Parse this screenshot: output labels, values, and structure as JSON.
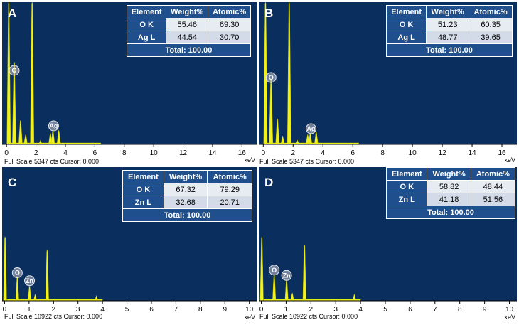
{
  "chart_data": [
    {
      "type": "bar",
      "panel_letter": "A",
      "xlim": [
        -0.3,
        17
      ],
      "xticks": [
        0,
        2,
        4,
        6,
        8,
        10,
        12,
        14,
        16
      ],
      "xunit": "keV",
      "status": "Full Scale 5347 cts Cursor: 0.000",
      "full_scale": 5347,
      "peaks": [
        {
          "x": 0.15,
          "h": 1.0
        },
        {
          "x": 0.52,
          "h": 0.58
        },
        {
          "x": 0.95,
          "h": 0.17
        },
        {
          "x": 1.3,
          "h": 0.07
        },
        {
          "x": 1.74,
          "h": 1.0
        },
        {
          "x": 2.3,
          "h": 0.03
        },
        {
          "x": 2.98,
          "h": 0.08
        },
        {
          "x": 3.15,
          "h": 0.1
        },
        {
          "x": 3.55,
          "h": 0.1
        }
      ],
      "markers": [
        {
          "label": "O",
          "x": 0.52,
          "hpos": 0.52
        },
        {
          "label": "Ag",
          "x": 3.2,
          "hpos": 0.13
        }
      ],
      "table": {
        "headers": [
          "Element",
          "Weight%",
          "Atomic%"
        ],
        "rows": [
          [
            "O K",
            "55.46",
            "69.30"
          ],
          [
            "Ag L",
            "44.54",
            "30.70"
          ]
        ],
        "total": "Total: 100.00"
      }
    },
    {
      "type": "bar",
      "panel_letter": "B",
      "xlim": [
        -0.3,
        17
      ],
      "xticks": [
        0,
        2,
        4,
        6,
        8,
        10,
        12,
        14,
        16
      ],
      "xunit": "keV",
      "status": "Full Scale 5347 cts Cursor: 0.000",
      "full_scale": 5347,
      "peaks": [
        {
          "x": 0.15,
          "h": 1.0
        },
        {
          "x": 0.52,
          "h": 0.46
        },
        {
          "x": 0.95,
          "h": 0.18
        },
        {
          "x": 1.3,
          "h": 0.06
        },
        {
          "x": 1.74,
          "h": 1.0
        },
        {
          "x": 2.3,
          "h": 0.03
        },
        {
          "x": 2.98,
          "h": 0.07
        },
        {
          "x": 3.15,
          "h": 0.08
        },
        {
          "x": 3.55,
          "h": 0.09
        }
      ],
      "markers": [
        {
          "label": "O",
          "x": 0.52,
          "hpos": 0.47
        },
        {
          "label": "Ag",
          "x": 3.2,
          "hpos": 0.11
        }
      ],
      "table": {
        "headers": [
          "Element",
          "Weight%",
          "Atomic%"
        ],
        "rows": [
          [
            "O K",
            "51.23",
            "60.35"
          ],
          [
            "Ag L",
            "48.77",
            "39.65"
          ]
        ],
        "total": "Total: 100.00"
      }
    },
    {
      "type": "bar",
      "panel_letter": "C",
      "xlim": [
        -0.1,
        10.3
      ],
      "xticks": [
        0,
        1,
        2,
        3,
        4,
        5,
        6,
        7,
        8,
        9,
        10
      ],
      "xunit": "keV",
      "status": "Full Scale 10922 cts Cursor: 0.000",
      "full_scale": 10922,
      "peaks": [
        {
          "x": 0.02,
          "h": 0.48
        },
        {
          "x": 0.52,
          "h": 0.18
        },
        {
          "x": 1.02,
          "h": 0.11
        },
        {
          "x": 1.25,
          "h": 0.05
        },
        {
          "x": 1.74,
          "h": 0.38
        },
        {
          "x": 3.75,
          "h": 0.04
        }
      ],
      "markers": [
        {
          "label": "O",
          "x": 0.52,
          "hpos": 0.21
        },
        {
          "label": "Zn",
          "x": 1.02,
          "hpos": 0.15
        }
      ],
      "table": {
        "headers": [
          "Element",
          "Weight%",
          "Atomic%"
        ],
        "rows": [
          [
            "O K",
            "67.32",
            "79.29"
          ],
          [
            "Zn L",
            "32.68",
            "20.71"
          ]
        ],
        "total": "Total: 100.00"
      }
    },
    {
      "type": "bar",
      "panel_letter": "D",
      "xlim": [
        -0.1,
        10.3
      ],
      "xticks": [
        0,
        1,
        2,
        3,
        4,
        5,
        6,
        7,
        8,
        9,
        10
      ],
      "xunit": "keV",
      "status": "Full Scale 10922 cts Cursor: 0.000",
      "full_scale": 10922,
      "peaks": [
        {
          "x": 0.02,
          "h": 0.48
        },
        {
          "x": 0.52,
          "h": 0.2
        },
        {
          "x": 1.02,
          "h": 0.16
        },
        {
          "x": 1.25,
          "h": 0.06
        },
        {
          "x": 1.74,
          "h": 0.42
        },
        {
          "x": 3.75,
          "h": 0.05
        }
      ],
      "markers": [
        {
          "label": "O",
          "x": 0.52,
          "hpos": 0.23
        },
        {
          "label": "Zn",
          "x": 1.02,
          "hpos": 0.19
        }
      ],
      "table": {
        "headers": [
          "Element",
          "Weight%",
          "Atomic%"
        ],
        "rows": [
          [
            "O K",
            "58.82",
            "48.44"
          ],
          [
            "Zn L",
            "41.18",
            "51.56"
          ]
        ],
        "total": "Total: 100.00"
      }
    }
  ],
  "colors": {
    "plot_background": "#0a2e5e",
    "peak_fill": "#f2f21a",
    "table_header": "#1f4f8c"
  }
}
